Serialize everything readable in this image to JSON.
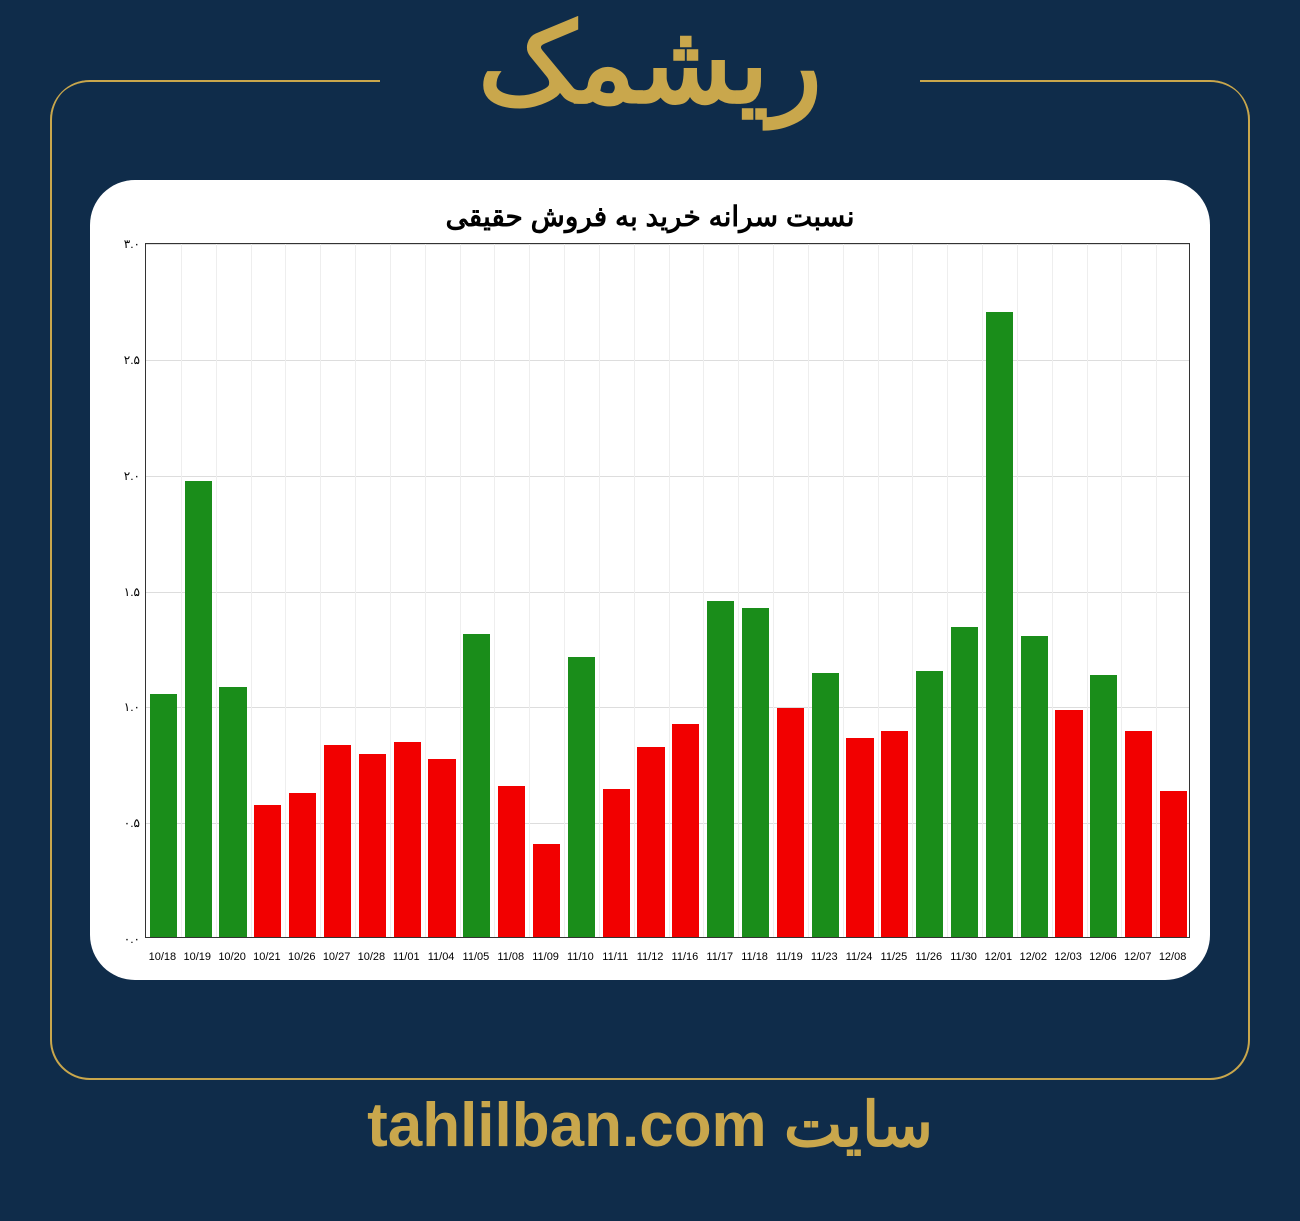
{
  "page": {
    "bg_color": "#0f2c4a",
    "frame_color": "#c9a74c"
  },
  "header": {
    "title": "ریشمک"
  },
  "footer": {
    "label": "سایت",
    "url": "tahlilban.com"
  },
  "chart": {
    "type": "bar",
    "title": "نسبت سرانه خرید به فروش حقیقی",
    "title_fontsize": 28,
    "background_color": "#ffffff",
    "grid_color": "#dddddd",
    "axis_color": "#333333",
    "ylim": [
      0.0,
      3.0
    ],
    "ytick_step": 0.5,
    "yticks": [
      "۰.۰",
      "۰.۵",
      "۱.۰",
      "۱.۵",
      "۲.۰",
      "۲.۵",
      "۳.۰"
    ],
    "bar_width": 0.78,
    "colors": {
      "up": "#1a8d1a",
      "down": "#f20000"
    },
    "categories": [
      "10/18",
      "10/19",
      "10/20",
      "10/21",
      "10/26",
      "10/27",
      "10/28",
      "11/01",
      "11/04",
      "11/05",
      "11/08",
      "11/09",
      "11/10",
      "11/11",
      "11/12",
      "11/16",
      "11/17",
      "11/18",
      "11/19",
      "11/23",
      "11/24",
      "11/25",
      "11/26",
      "11/30",
      "12/01",
      "12/02",
      "12/03",
      "12/06",
      "12/07",
      "12/08"
    ],
    "values": [
      1.05,
      1.97,
      1.08,
      0.57,
      0.62,
      0.83,
      0.79,
      0.84,
      0.77,
      1.31,
      0.65,
      0.4,
      1.21,
      0.64,
      0.82,
      0.92,
      1.45,
      1.42,
      0.99,
      1.14,
      0.86,
      0.89,
      1.15,
      1.34,
      2.7,
      1.3,
      0.98,
      1.13,
      0.89,
      0.63
    ],
    "directions": [
      "up",
      "up",
      "up",
      "down",
      "down",
      "down",
      "down",
      "down",
      "down",
      "up",
      "down",
      "down",
      "up",
      "down",
      "down",
      "down",
      "up",
      "up",
      "down",
      "up",
      "down",
      "down",
      "up",
      "up",
      "up",
      "up",
      "down",
      "up",
      "down",
      "down"
    ]
  }
}
